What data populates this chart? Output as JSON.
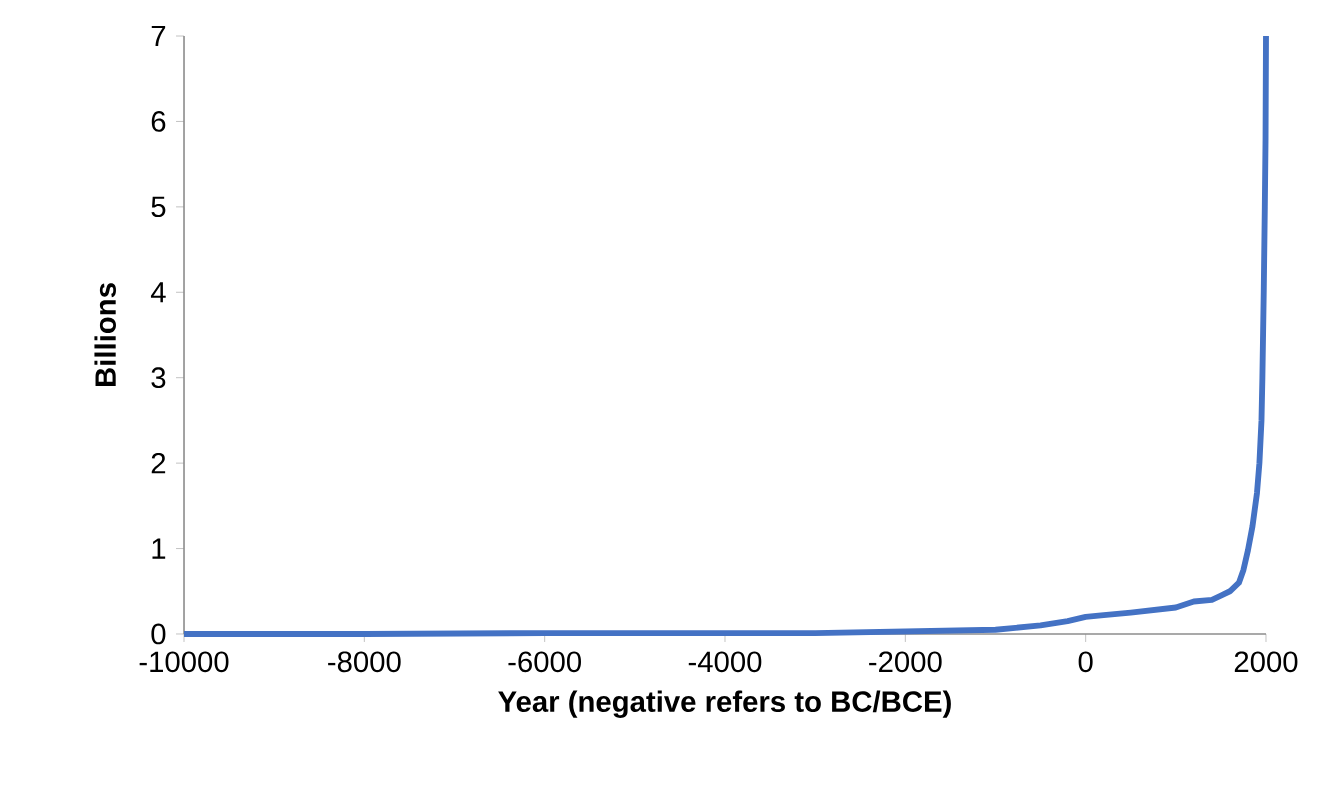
{
  "chart_data": {
    "type": "line",
    "xlabel": "Year (negative refers to BC/BCE)",
    "ylabel": "Billions",
    "series": [
      {
        "color": "#4472c4",
        "x": [
          -10000,
          -8000,
          -6000,
          -5000,
          -4000,
          -3000,
          -2000,
          -1000,
          -500,
          -200,
          0,
          200,
          500,
          1000,
          1200,
          1400,
          1500,
          1600,
          1700,
          1750,
          1800,
          1850,
          1900,
          1927,
          1950,
          1960,
          1975,
          1987,
          1995,
          2000
        ],
        "values": [
          0.0,
          0.0,
          0.01,
          0.01,
          0.01,
          0.01,
          0.03,
          0.05,
          0.1,
          0.15,
          0.2,
          0.22,
          0.25,
          0.31,
          0.38,
          0.4,
          0.45,
          0.5,
          0.6,
          0.75,
          0.98,
          1.26,
          1.65,
          2.0,
          2.5,
          3.0,
          4.0,
          5.0,
          5.8,
          7.0
        ]
      }
    ],
    "xlim": [
      -10000,
      2000
    ],
    "xticks": [
      -10000,
      -8000,
      -6000,
      -4000,
      -2000,
      0,
      2000
    ],
    "ylim": [
      0,
      7
    ],
    "yticks": [
      0,
      1,
      2,
      3,
      4,
      5,
      6,
      7
    ],
    "grid": false,
    "marker": "none",
    "line_style": "solid"
  }
}
